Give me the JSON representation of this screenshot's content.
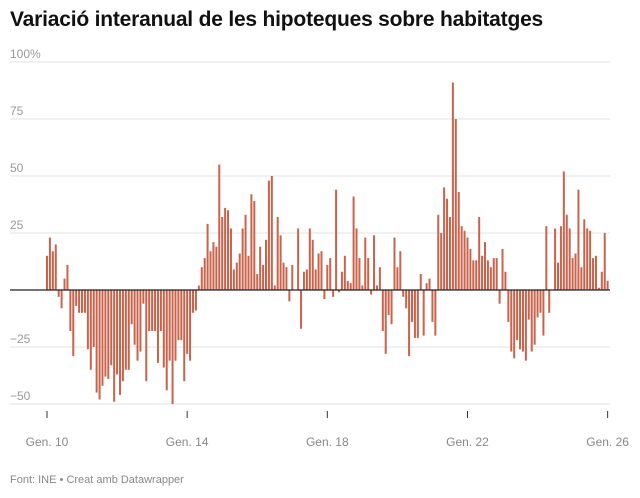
{
  "chart_data": {
    "type": "bar",
    "title": "Variació interanual de les hipoteques sobre habitatges",
    "footer": {
      "source": "Font: INE",
      "separator": "•",
      "credit": "Creat amb Datawrapper"
    },
    "ylim": [
      -50,
      100
    ],
    "y_ticks": [
      {
        "value": 100,
        "label": "100%"
      },
      {
        "value": 75,
        "label": "75"
      },
      {
        "value": 50,
        "label": "50"
      },
      {
        "value": 25,
        "label": "25"
      },
      {
        "value": 0,
        "label": ""
      },
      {
        "value": -25,
        "label": "−25"
      },
      {
        "value": -50,
        "label": "−50"
      }
    ],
    "x_ticks": [
      {
        "date": "2010-01",
        "label": "Gen. 10"
      },
      {
        "date": "2014-01",
        "label": "Gen. 14"
      },
      {
        "date": "2018-01",
        "label": "Gen. 18"
      },
      {
        "date": "2022-01",
        "label": "Gen. 22"
      },
      {
        "date": "2026-01",
        "label": "Gen. 26"
      }
    ],
    "grid": true,
    "bar_color": "#c9634b",
    "frequency": "monthly",
    "values_by_year": {
      "2010": [
        15,
        23,
        17,
        20,
        -3,
        -8,
        5,
        11,
        -18,
        -29,
        -7,
        -10
      ],
      "2011": [
        -10,
        -10,
        -26,
        -35,
        -25,
        -45,
        -48,
        -42,
        -38,
        -39,
        -33,
        -49
      ],
      "2012": [
        -37,
        -46,
        -40,
        -35,
        -35,
        -15,
        -24,
        -31,
        -27,
        -6,
        -40,
        -18
      ],
      "2013": [
        -18,
        -18,
        -32,
        -18,
        -34,
        -44,
        -31,
        -50,
        -31,
        -22,
        -22,
        -40
      ],
      "2014": [
        -28,
        -31,
        -10,
        -9,
        2,
        10,
        14,
        29,
        17,
        21,
        19,
        55
      ],
      "2015": [
        32,
        36,
        35,
        27,
        9,
        12,
        16,
        27,
        33,
        15,
        42,
        39
      ],
      "2016": [
        7,
        19,
        11,
        22,
        48,
        50,
        2,
        32,
        24,
        12,
        10,
        -5
      ],
      "2017": [
        11,
        0,
        27,
        -17,
        8,
        9,
        27,
        22,
        9,
        16,
        17,
        -4
      ],
      "2018": [
        11,
        14,
        -3,
        44,
        -1,
        8,
        15,
        4,
        3,
        41,
        27,
        14
      ],
      "2019": [
        2,
        23,
        14,
        -2,
        24,
        2,
        10,
        -18,
        -28,
        -11,
        -15,
        23
      ],
      "2020": [
        10,
        17,
        -3,
        -8,
        -29,
        -14,
        -21,
        -21,
        7,
        -20,
        3,
        5
      ],
      "2021": [
        -14,
        -20,
        33,
        25,
        45,
        40,
        32,
        91,
        75,
        43,
        28,
        26
      ],
      "2022": [
        23,
        18,
        13,
        13,
        32,
        15,
        21,
        13,
        10,
        14,
        14,
        -6
      ],
      "2023": [
        18,
        8,
        -14,
        -27,
        -30,
        -22,
        -26,
        -27,
        -31,
        -13,
        -27,
        -24
      ],
      "2024": [
        -12,
        -10,
        -20,
        28,
        -10,
        0,
        27,
        12,
        28,
        52,
        33,
        27
      ],
      "2025": [
        14,
        16,
        44,
        10,
        31,
        27,
        26,
        14,
        15,
        1,
        8,
        25
      ],
      "2026": [
        4
      ]
    }
  }
}
